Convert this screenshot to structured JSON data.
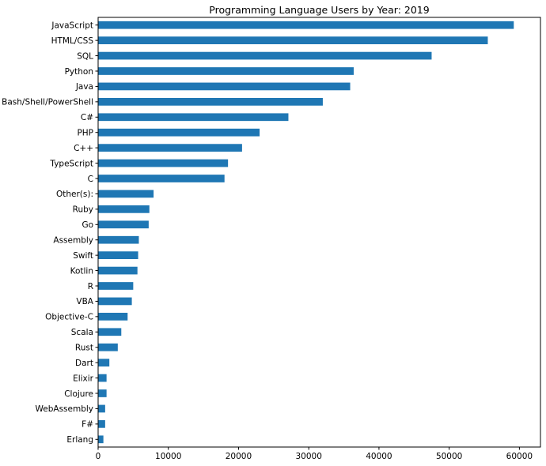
{
  "chart_data": {
    "type": "bar",
    "orientation": "horizontal",
    "title": "Programming Language Users by Year: 2019",
    "xlabel": "",
    "ylabel": "",
    "xlim": [
      0,
      63000
    ],
    "xticks": [
      0,
      10000,
      20000,
      30000,
      40000,
      50000,
      60000
    ],
    "grid": false,
    "bar_color": "#1f77b4",
    "categories": [
      "JavaScript",
      "HTML/CSS",
      "SQL",
      "Python",
      "Java",
      "Bash/Shell/PowerShell",
      "C#",
      "PHP",
      "C++",
      "TypeScript",
      "C",
      "Other(s):",
      "Ruby",
      "Go",
      "Assembly",
      "Swift",
      "Kotlin",
      "R",
      "VBA",
      "Objective-C",
      "Scala",
      "Rust",
      "Dart",
      "Elixir",
      "Clojure",
      "WebAssembly",
      "F#",
      "Erlang"
    ],
    "values": [
      59200,
      55500,
      47500,
      36400,
      35900,
      32000,
      27100,
      23000,
      20500,
      18500,
      18000,
      7900,
      7300,
      7200,
      5800,
      5700,
      5600,
      5000,
      4800,
      4200,
      3300,
      2800,
      1600,
      1200,
      1200,
      1000,
      1000,
      750
    ]
  }
}
